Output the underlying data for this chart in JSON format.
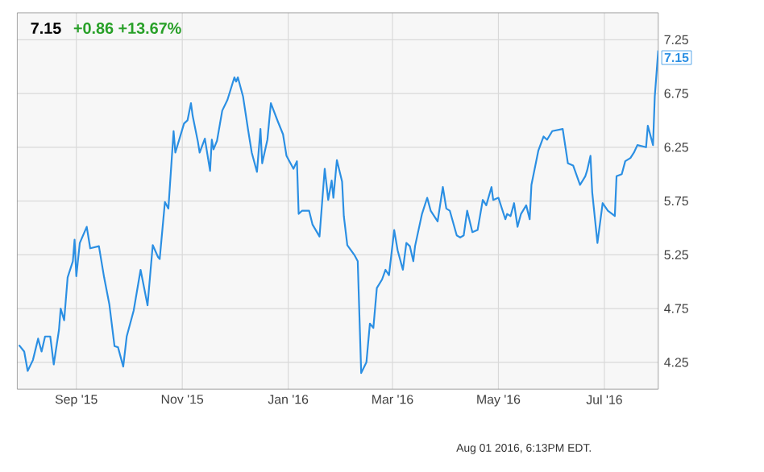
{
  "chart_data": {
    "type": "line",
    "title": "7.15",
    "subtitle": "+0.86  +13.67%",
    "x": [
      "2015-07-30",
      "2015-08-02",
      "2015-08-04",
      "2015-08-07",
      "2015-08-10",
      "2015-08-12",
      "2015-08-14",
      "2015-08-17",
      "2015-08-19",
      "2015-08-22",
      "2015-08-23",
      "2015-08-25",
      "2015-08-27",
      "2015-08-30",
      "2015-08-31",
      "2015-09-01",
      "2015-09-03",
      "2015-09-07",
      "2015-09-09",
      "2015-09-14",
      "2015-09-17",
      "2015-09-20",
      "2015-09-23",
      "2015-09-25",
      "2015-09-28",
      "2015-09-30",
      "2015-10-04",
      "2015-10-08",
      "2015-10-12",
      "2015-10-15",
      "2015-10-18",
      "2015-10-19",
      "2015-10-22",
      "2015-10-24",
      "2015-10-27",
      "2015-10-28",
      "2015-11-02",
      "2015-11-04",
      "2015-11-06",
      "2015-11-07",
      "2015-11-10",
      "2015-11-11",
      "2015-11-14",
      "2015-11-17",
      "2015-11-18",
      "2015-11-19",
      "2015-11-21",
      "2015-11-24",
      "2015-11-27",
      "2015-12-01",
      "2015-12-02",
      "2015-12-03",
      "2015-12-06",
      "2015-12-09",
      "2015-12-11",
      "2015-12-14",
      "2015-12-16",
      "2015-12-17",
      "2015-12-20",
      "2015-12-22",
      "2015-12-26",
      "2015-12-29",
      "2015-12-31",
      "2016-01-04",
      "2016-01-06",
      "2016-01-07",
      "2016-01-09",
      "2016-01-13",
      "2016-01-15",
      "2016-01-19",
      "2016-01-22",
      "2016-01-24",
      "2016-01-26",
      "2016-01-27",
      "2016-01-29",
      "2016-02-01",
      "2016-02-02",
      "2016-02-04",
      "2016-02-08",
      "2016-02-10",
      "2016-02-12",
      "2016-02-15",
      "2016-02-17",
      "2016-02-19",
      "2016-02-21",
      "2016-02-24",
      "2016-02-26",
      "2016-02-28",
      "2016-03-02",
      "2016-03-04",
      "2016-03-07",
      "2016-03-09",
      "2016-03-11",
      "2016-03-13",
      "2016-03-14",
      "2016-03-18",
      "2016-03-21",
      "2016-03-23",
      "2016-03-27",
      "2016-03-30",
      "2016-04-01",
      "2016-04-03",
      "2016-04-07",
      "2016-04-09",
      "2016-04-11",
      "2016-04-13",
      "2016-04-16",
      "2016-04-19",
      "2016-04-22",
      "2016-04-24",
      "2016-04-27",
      "2016-04-28",
      "2016-05-01",
      "2016-05-05",
      "2016-05-06",
      "2016-05-08",
      "2016-05-10",
      "2016-05-12",
      "2016-05-14",
      "2016-05-17",
      "2016-05-19",
      "2016-05-20",
      "2016-05-24",
      "2016-05-27",
      "2016-05-29",
      "2016-06-01",
      "2016-06-07",
      "2016-06-10",
      "2016-06-13",
      "2016-06-17",
      "2016-06-20",
      "2016-06-21",
      "2016-06-23",
      "2016-06-24",
      "2016-06-27",
      "2016-06-30",
      "2016-07-03",
      "2016-07-07",
      "2016-07-08",
      "2016-07-11",
      "2016-07-13",
      "2016-07-16",
      "2016-07-18",
      "2016-07-20",
      "2016-07-25",
      "2016-07-26",
      "2016-07-29",
      "2016-07-30",
      "2016-08-01"
    ],
    "series": [
      {
        "color": "#2b8fe3",
        "values": [
          4.41,
          4.35,
          4.17,
          4.27,
          4.47,
          4.35,
          4.49,
          4.49,
          4.23,
          4.55,
          4.75,
          4.64,
          5.04,
          5.19,
          5.39,
          5.05,
          5.36,
          5.51,
          5.31,
          5.33,
          5.04,
          4.79,
          4.4,
          4.39,
          4.21,
          4.49,
          4.73,
          5.11,
          4.78,
          5.34,
          5.23,
          5.21,
          5.74,
          5.68,
          6.4,
          6.2,
          6.47,
          6.5,
          6.66,
          6.54,
          6.3,
          6.2,
          6.33,
          6.03,
          6.32,
          6.23,
          6.31,
          6.59,
          6.69,
          6.9,
          6.86,
          6.9,
          6.72,
          6.4,
          6.2,
          6.02,
          6.42,
          6.1,
          6.32,
          6.66,
          6.49,
          6.37,
          6.17,
          6.05,
          6.12,
          5.63,
          5.66,
          5.66,
          5.53,
          5.42,
          6.05,
          5.76,
          5.94,
          5.78,
          6.13,
          5.93,
          5.61,
          5.34,
          5.25,
          5.19,
          4.15,
          4.25,
          4.61,
          4.57,
          4.94,
          5.02,
          5.11,
          5.06,
          5.48,
          5.29,
          5.11,
          5.36,
          5.33,
          5.19,
          5.33,
          5.63,
          5.78,
          5.66,
          5.56,
          5.88,
          5.68,
          5.66,
          5.43,
          5.41,
          5.43,
          5.66,
          5.46,
          5.48,
          5.76,
          5.71,
          5.88,
          5.76,
          5.78,
          5.58,
          5.63,
          5.61,
          5.73,
          5.51,
          5.63,
          5.71,
          5.58,
          5.9,
          6.22,
          6.35,
          6.32,
          6.4,
          6.42,
          6.1,
          6.08,
          5.9,
          5.98,
          6.03,
          6.17,
          5.83,
          5.36,
          5.73,
          5.66,
          5.61,
          5.98,
          6.0,
          6.12,
          6.15,
          6.2,
          6.27,
          6.25,
          6.45,
          6.27,
          6.72,
          7.15
        ]
      }
    ],
    "xlim": [
      "2015-07-29",
      "2016-08-01"
    ],
    "ylim": [
      4.0,
      7.5
    ],
    "xticks": [
      {
        "value": "2015-09-01",
        "label": "Sep '15"
      },
      {
        "value": "2015-11-01",
        "label": "Nov '15"
      },
      {
        "value": "2016-01-01",
        "label": "Jan '16"
      },
      {
        "value": "2016-03-01",
        "label": "Mar '16"
      },
      {
        "value": "2016-05-01",
        "label": "May '16"
      },
      {
        "value": "2016-07-01",
        "label": "Jul '16"
      }
    ],
    "yticks": [
      4.25,
      4.75,
      5.25,
      5.75,
      6.25,
      6.75,
      7.25
    ],
    "grid": true,
    "annotations": [
      {
        "text": "7.15",
        "x": "2016-08-01",
        "y": 7.15
      },
      "Aug 01 2016, 6:13PM EDT."
    ]
  }
}
